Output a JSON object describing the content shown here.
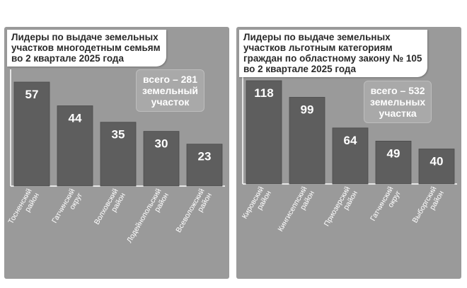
{
  "charts": [
    {
      "title_lines": [
        "Лидеры по выдаче земельных",
        "участков многодетным семьям",
        "во 2 квартале 2025 года"
      ],
      "total_lines": [
        "всего – 281",
        "земельный",
        "участок"
      ]
    },
    {
      "title_lines": [
        "Лидеры по выдаче земельных",
        "участков льготным категориям",
        "граждан по областному закону № 105",
        "во 2 квартале 2025 года"
      ],
      "total_lines": [
        "всего – 532",
        "земельных",
        "участка"
      ]
    }
  ],
  "chart_data": [
    {
      "type": "bar",
      "title": "Лидеры по выдаче земельных участков многодетным семьям во 2 квартале 2025 года",
      "categories": [
        [
          "Тосненский",
          "район"
        ],
        [
          "Гатчинский",
          "округ"
        ],
        [
          "Волховский",
          "район"
        ],
        [
          "Лодейнопольский",
          "район"
        ],
        [
          "Всеволожский",
          "район"
        ]
      ],
      "values": [
        57,
        44,
        35,
        30,
        23
      ],
      "annotation": "всего – 281 земельный участок",
      "colors": {
        "bar": "#5e5e5e",
        "background": "#9a9a9a",
        "label": "#ffffff"
      }
    },
    {
      "type": "bar",
      "title": "Лидеры по выдаче земельных участков льготным категориям граждан по областному закону № 105 во 2 квартале 2025 года",
      "categories": [
        [
          "Кировский",
          "район"
        ],
        [
          "Кингисеппский",
          "район"
        ],
        [
          "Приозерский",
          "район"
        ],
        [
          "Гатчинский",
          "округ"
        ],
        [
          "Выборгский",
          "район"
        ]
      ],
      "values": [
        118,
        99,
        64,
        49,
        40
      ],
      "annotation": "всего – 532 земельных участка",
      "colors": {
        "bar": "#5e5e5e",
        "background": "#9a9a9a",
        "label": "#ffffff"
      }
    }
  ]
}
